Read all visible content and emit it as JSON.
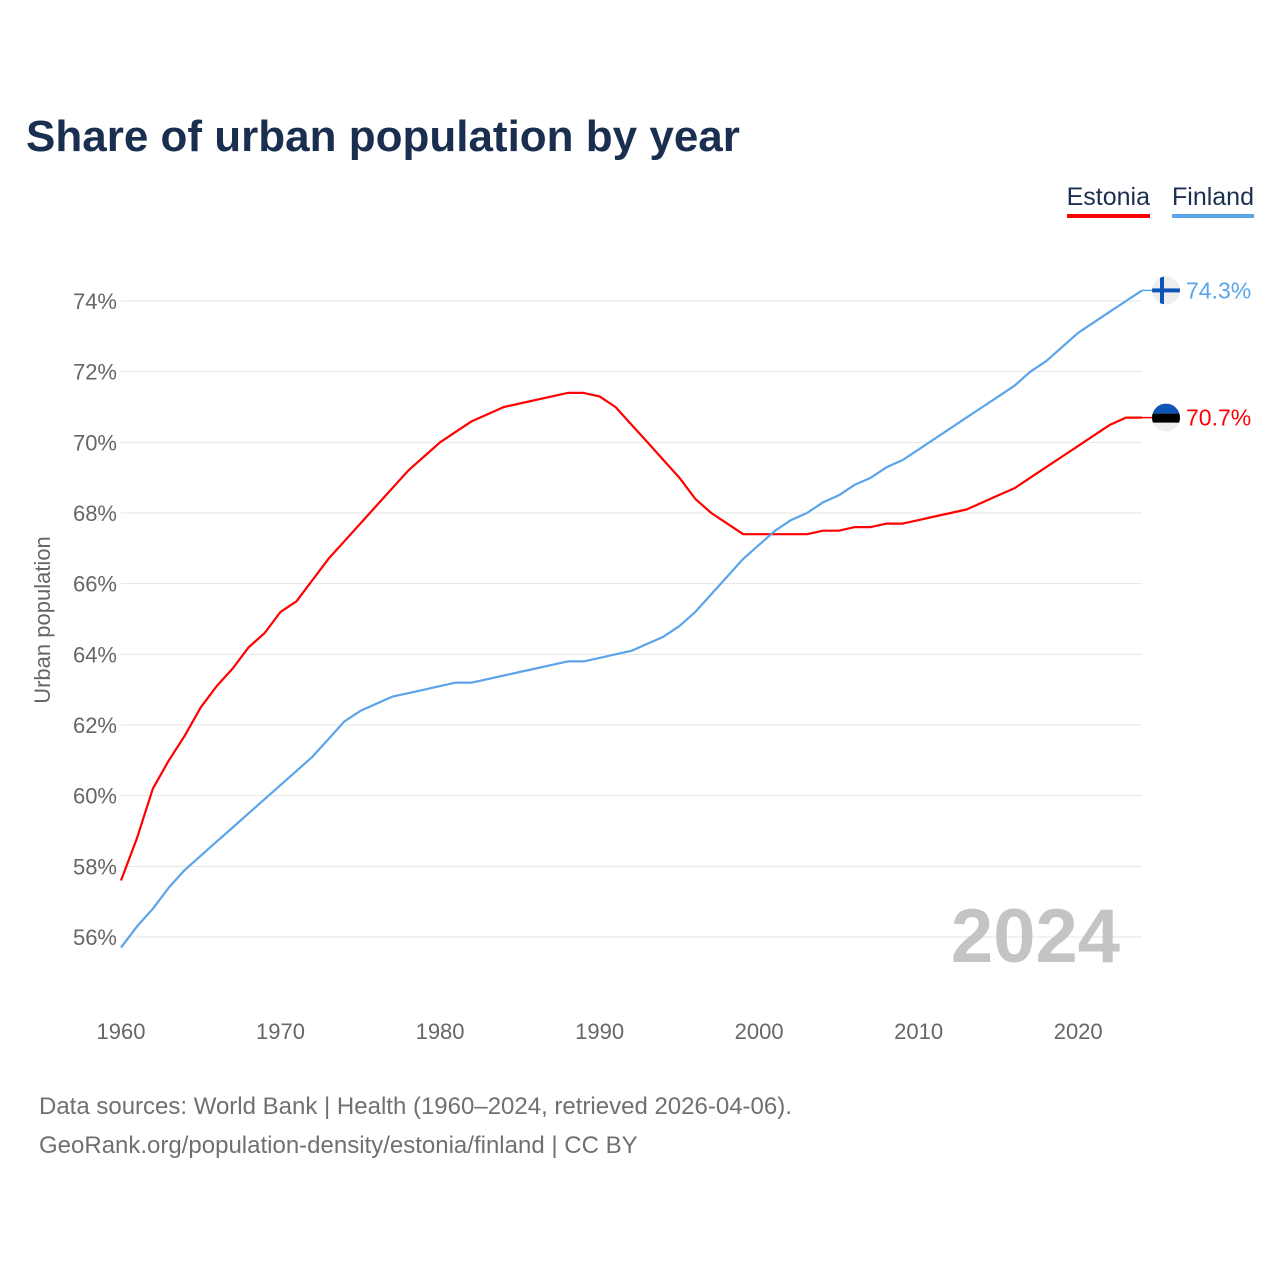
{
  "chart_data": {
    "type": "line",
    "title": "Share of urban population by year",
    "xlabel": "",
    "ylabel": "Urban population",
    "xlim": [
      1960,
      2024
    ],
    "ylim": [
      54.2,
      75.2
    ],
    "grid": true,
    "legend_placement": "top-right",
    "year_watermark": "2024",
    "xticks": [
      1960,
      1970,
      1980,
      1990,
      2000,
      2010,
      2020
    ],
    "xtick_labels": [
      "1960",
      "1970",
      "1980",
      "1990",
      "2000",
      "2010",
      "2020"
    ],
    "yticks": [
      56,
      58,
      60,
      62,
      64,
      66,
      68,
      70,
      72,
      74
    ],
    "ytick_labels": [
      "56%",
      "58%",
      "60%",
      "62%",
      "64%",
      "66%",
      "68%",
      "70%",
      "72%",
      "74%"
    ],
    "x": [
      1960,
      1961,
      1962,
      1963,
      1964,
      1965,
      1966,
      1967,
      1968,
      1969,
      1970,
      1971,
      1972,
      1973,
      1974,
      1975,
      1976,
      1977,
      1978,
      1979,
      1980,
      1981,
      1982,
      1983,
      1984,
      1985,
      1986,
      1987,
      1988,
      1989,
      1990,
      1991,
      1992,
      1993,
      1994,
      1995,
      1996,
      1997,
      1998,
      1999,
      2000,
      2001,
      2002,
      2003,
      2004,
      2005,
      2006,
      2007,
      2008,
      2009,
      2010,
      2011,
      2012,
      2013,
      2014,
      2015,
      2016,
      2017,
      2018,
      2019,
      2020,
      2021,
      2022,
      2023,
      2024
    ],
    "series": [
      {
        "name": "Estonia",
        "color": "#ff0000",
        "end_label": "70.7%",
        "flag": "estonia-flag",
        "values": [
          57.6,
          58.8,
          60.2,
          61.0,
          61.7,
          62.5,
          63.1,
          63.6,
          64.2,
          64.6,
          65.2,
          65.5,
          66.1,
          66.7,
          67.2,
          67.7,
          68.2,
          68.7,
          69.2,
          69.6,
          70.0,
          70.3,
          70.6,
          70.8,
          71.0,
          71.1,
          71.2,
          71.3,
          71.4,
          71.4,
          71.3,
          71.0,
          70.5,
          70.0,
          69.5,
          69.0,
          68.4,
          68.0,
          67.7,
          67.4,
          67.4,
          67.4,
          67.4,
          67.4,
          67.5,
          67.5,
          67.6,
          67.6,
          67.7,
          67.7,
          67.8,
          67.9,
          68.0,
          68.1,
          68.3,
          68.5,
          68.7,
          69.0,
          69.3,
          69.6,
          69.9,
          70.2,
          70.5,
          70.7,
          70.7
        ]
      },
      {
        "name": "Finland",
        "color": "#5ba4ea",
        "end_label": "74.3%",
        "flag": "finland-flag",
        "values": [
          55.7,
          56.3,
          56.8,
          57.4,
          57.9,
          58.3,
          58.7,
          59.1,
          59.5,
          59.9,
          60.3,
          60.7,
          61.1,
          61.6,
          62.1,
          62.4,
          62.6,
          62.8,
          62.9,
          63.0,
          63.1,
          63.2,
          63.2,
          63.3,
          63.4,
          63.5,
          63.6,
          63.7,
          63.8,
          63.8,
          63.9,
          64.0,
          64.1,
          64.3,
          64.5,
          64.8,
          65.2,
          65.7,
          66.2,
          66.7,
          67.1,
          67.5,
          67.8,
          68.0,
          68.3,
          68.5,
          68.8,
          69.0,
          69.3,
          69.5,
          69.8,
          70.1,
          70.4,
          70.7,
          71.0,
          71.3,
          71.6,
          72.0,
          72.3,
          72.7,
          73.1,
          73.4,
          73.7,
          74.0,
          74.3
        ]
      }
    ]
  },
  "footer": {
    "line1": "Data sources: World Bank | Health (1960–2024, retrieved 2026-04-06).",
    "line2": "GeoRank.org/population-density/estonia/finland | CC BY"
  }
}
